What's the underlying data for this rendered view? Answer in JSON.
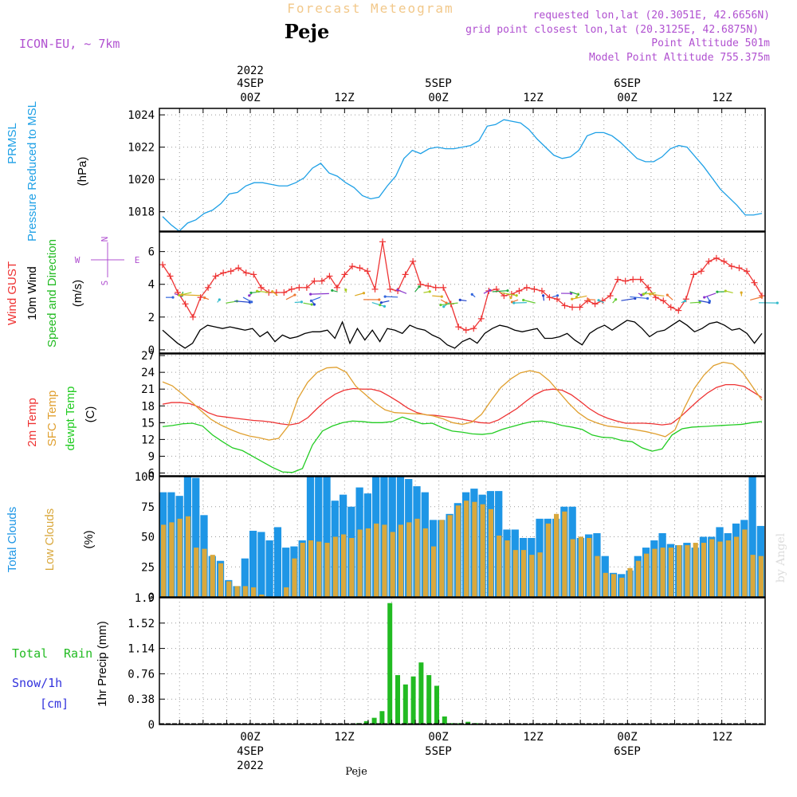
{
  "header": {
    "forecast_title": "Forecast Meteogram",
    "location": "Peje",
    "model": "ICON-EU, ~ 7km",
    "requested": "requested lon,lat (20.3051E, 42.6656N)",
    "grid_point": "grid point closest lon,lat (20.3125E, 42.6875N)",
    "point_alt": "Point Altitude 501m",
    "model_alt": "Model Point Altitude 755.375m"
  },
  "time_axis": {
    "top_dates": [
      "2022",
      "4SEP",
      "5SEP",
      "6SEP"
    ],
    "tick_labels": [
      "00Z",
      "12Z",
      "00Z",
      "12Z",
      "00Z",
      "12Z"
    ],
    "bottom_dates": [
      "4SEP",
      "2022",
      "5SEP",
      "6SEP"
    ],
    "footer": "Peje"
  },
  "watermark": "by Angel",
  "colors": {
    "pressure": "#1ea0e6",
    "gust": "#ee3333",
    "wind": "#000000",
    "wind_dir": "#22bb22",
    "t2m": "#ee3333",
    "sfc": "#e0a030",
    "dew": "#22cc22",
    "total_clouds": "#1e96e6",
    "low_clouds": "#d9a83c",
    "rain": "#22bb22",
    "snow": "#3333dd",
    "purple": "#b050d0"
  },
  "chart_data": [
    {
      "type": "line",
      "ylabels": [
        "PRMSL",
        "Pressure Reduced to MSL",
        "(hPa)"
      ],
      "yticks": [
        1018,
        1020,
        1022,
        1024
      ],
      "ylim": [
        1016.8,
        1024.4
      ],
      "series": [
        {
          "values": [
            1017.7,
            1017.2,
            1016.8,
            1017.3,
            1017.5,
            1017.9,
            1018.1,
            1018.5,
            1019.1,
            1019.2,
            1019.6,
            1019.8,
            1019.8,
            1019.7,
            1019.6,
            1019.6,
            1019.8,
            1020.1,
            1020.7,
            1021.0,
            1020.4,
            1020.2,
            1019.8,
            1019.5,
            1019.0,
            1018.8,
            1018.9,
            1019.6,
            1020.2,
            1021.3,
            1021.8,
            1021.6,
            1021.9,
            1022.0,
            1021.9,
            1021.9,
            1022.0,
            1022.1,
            1022.4,
            1023.3,
            1023.4,
            1023.7,
            1023.6,
            1023.5,
            1023.1,
            1022.5,
            1022.0,
            1021.5,
            1021.3,
            1021.4,
            1021.8,
            1022.7,
            1022.9,
            1022.9,
            1022.7,
            1022.3,
            1021.8,
            1021.3,
            1021.1,
            1021.1,
            1021.4,
            1021.9,
            1022.1,
            1022.0,
            1021.4,
            1020.8,
            1020.1,
            1019.4,
            1018.9,
            1018.4,
            1017.8,
            1017.8,
            1017.9
          ]
        }
      ]
    },
    {
      "type": "line",
      "ylabels": [
        "Wind GUST",
        "10m Wind",
        "Speed and Direction",
        "(m/s)"
      ],
      "compass": [
        "N",
        "W",
        "E",
        "S"
      ],
      "yticks": [
        0,
        2,
        4,
        6
      ],
      "ylim": [
        -0.2,
        7.2
      ],
      "series": [
        {
          "name": "Wind GUST",
          "values": [
            5.2,
            4.5,
            3.5,
            2.8,
            2.0,
            3.2,
            3.8,
            4.5,
            4.7,
            4.8,
            5.0,
            4.7,
            4.6,
            3.8,
            3.5,
            3.5,
            3.5,
            3.7,
            3.8,
            3.8,
            4.2,
            4.2,
            4.5,
            3.8,
            4.6,
            5.1,
            5.0,
            4.8,
            3.7,
            6.6,
            3.7,
            3.6,
            4.6,
            5.4,
            4.0,
            3.9,
            3.8,
            3.8,
            2.8,
            1.4,
            1.2,
            1.3,
            1.9,
            3.6,
            3.7,
            3.3,
            3.4,
            3.6,
            3.8,
            3.7,
            3.6,
            3.2,
            3.1,
            2.7,
            2.6,
            2.6,
            3.0,
            2.8,
            3.0,
            3.3,
            4.3,
            4.2,
            4.3,
            4.3,
            3.8,
            3.2,
            3.0,
            2.6,
            2.4,
            3.1,
            4.6,
            4.8,
            5.4,
            5.6,
            5.4,
            5.1,
            5.0,
            4.8,
            4.1,
            3.3
          ]
        },
        {
          "name": "10m Wind",
          "values": [
            1.2,
            0.8,
            0.4,
            0.1,
            0.4,
            1.2,
            1.5,
            1.4,
            1.3,
            1.4,
            1.3,
            1.2,
            1.3,
            0.8,
            1.1,
            0.5,
            0.9,
            0.7,
            0.8,
            1.0,
            1.1,
            1.1,
            1.2,
            0.7,
            1.7,
            0.4,
            1.3,
            0.6,
            1.2,
            0.5,
            1.3,
            1.2,
            1.0,
            1.5,
            1.3,
            1.2,
            0.9,
            0.7,
            0.3,
            0.1,
            0.5,
            0.7,
            0.4,
            1.0,
            1.3,
            1.5,
            1.4,
            1.2,
            1.1,
            1.2,
            1.3,
            0.7,
            0.7,
            0.8,
            1.0,
            0.6,
            0.3,
            1.0,
            1.3,
            1.5,
            1.2,
            1.5,
            1.8,
            1.7,
            1.3,
            0.8,
            1.1,
            1.2,
            1.5,
            1.8,
            1.5,
            1.1,
            1.3,
            1.6,
            1.7,
            1.5,
            1.2,
            1.3,
            1.0,
            0.4,
            1.0
          ]
        }
      ]
    },
    {
      "type": "line",
      "ylabels": [
        "2m Temp",
        "SFC Temp",
        "dewpt Temp",
        "(C)"
      ],
      "yticks": [
        6,
        9,
        12,
        15,
        18,
        21,
        24,
        27
      ],
      "ylim": [
        5.5,
        27.3
      ],
      "series": [
        {
          "name": "2m Temp",
          "values": [
            18.3,
            18.6,
            18.6,
            18.4,
            17.8,
            16.8,
            16.2,
            16.0,
            15.8,
            15.6,
            15.4,
            15.3,
            15.1,
            14.8,
            14.6,
            14.9,
            15.9,
            17.5,
            19.0,
            20.1,
            20.8,
            21.1,
            21.0,
            21.0,
            20.6,
            19.7,
            18.7,
            17.6,
            16.8,
            16.4,
            16.3,
            16.1,
            15.9,
            15.6,
            15.3,
            15.0,
            14.9,
            15.5,
            16.5,
            17.5,
            18.8,
            20.0,
            20.8,
            21.0,
            20.8,
            20.0,
            18.8,
            17.5,
            16.5,
            15.8,
            15.3,
            14.9,
            14.9,
            14.9,
            14.8,
            14.6,
            14.8,
            16.0,
            17.5,
            19.0,
            20.3,
            21.3,
            21.8,
            21.8,
            21.5,
            20.5,
            19.5
          ]
        },
        {
          "name": "SFC Temp",
          "values": [
            22.3,
            21.6,
            20.2,
            18.7,
            17.1,
            15.6,
            14.6,
            13.8,
            13.1,
            12.6,
            12.3,
            11.9,
            12.2,
            14.4,
            19.3,
            22.2,
            24.0,
            24.8,
            24.9,
            24.0,
            21.5,
            20.0,
            18.5,
            17.3,
            16.8,
            16.7,
            16.6,
            16.5,
            16.2,
            15.7,
            15.0,
            14.7,
            15.1,
            16.5,
            19.0,
            21.3,
            22.8,
            23.9,
            24.3,
            23.9,
            22.5,
            20.5,
            18.5,
            16.8,
            15.6,
            14.9,
            14.4,
            14.2,
            14.0,
            13.7,
            13.4,
            13.0,
            12.5,
            13.7,
            17.7,
            21.1,
            23.5,
            25.2,
            25.8,
            25.5,
            24.0,
            21.5,
            19.0
          ]
        },
        {
          "name": "dewpt Temp",
          "values": [
            14.3,
            14.5,
            14.8,
            14.9,
            14.4,
            12.8,
            11.6,
            10.5,
            10.0,
            9.0,
            8.0,
            7.0,
            6.2,
            6.1,
            6.8,
            11.0,
            13.5,
            14.4,
            15.0,
            15.3,
            15.2,
            15.0,
            15.0,
            15.2,
            16.0,
            15.4,
            14.8,
            14.9,
            14.1,
            13.5,
            13.3,
            13.0,
            12.9,
            13.1,
            13.8,
            14.3,
            14.8,
            15.2,
            15.3,
            15.0,
            14.5,
            14.2,
            13.8,
            12.8,
            12.4,
            12.3,
            11.8,
            11.6,
            10.5,
            9.9,
            10.3,
            12.8,
            13.9,
            14.2,
            14.3,
            14.4,
            14.5,
            14.6,
            14.7,
            15.0,
            15.2
          ]
        }
      ]
    },
    {
      "type": "bar",
      "ylabels": [
        "Total Clouds",
        "Low Clouds",
        "(%)"
      ],
      "yticks": [
        0,
        25,
        50,
        75,
        100
      ],
      "ylim": [
        0,
        100
      ],
      "series": [
        {
          "name": "Total Clouds",
          "values": [
            87,
            87,
            84,
            100,
            99,
            68,
            34,
            30,
            14,
            9,
            32,
            55,
            54,
            47,
            58,
            41,
            42,
            47,
            100,
            100,
            100,
            80,
            85,
            75,
            91,
            86,
            100,
            100,
            100,
            100,
            98,
            92,
            87,
            64,
            64,
            69,
            78,
            87,
            90,
            85,
            88,
            88,
            56,
            56,
            49,
            49,
            65,
            65,
            65,
            75,
            75,
            49,
            52,
            53,
            34,
            20,
            19,
            22,
            34,
            41,
            47,
            53,
            44,
            43,
            45,
            41,
            50,
            50,
            58,
            53,
            61,
            64,
            100,
            59
          ]
        },
        {
          "name": "Low Clouds",
          "values": [
            60,
            62,
            65,
            67,
            41,
            40,
            35,
            28,
            13,
            9,
            9,
            8,
            2,
            0,
            0,
            8,
            32,
            45,
            47,
            46,
            45,
            50,
            52,
            49,
            56,
            57,
            61,
            60,
            54,
            60,
            62,
            65,
            57,
            42,
            64,
            68,
            76,
            80,
            79,
            77,
            73,
            51,
            47,
            39,
            39,
            35,
            37,
            61,
            69,
            71,
            48,
            50,
            49,
            34,
            20,
            19,
            16,
            24,
            30,
            36,
            40,
            41,
            41,
            43,
            43,
            45,
            45,
            48,
            46,
            47,
            50,
            56,
            35,
            34
          ]
        }
      ]
    },
    {
      "type": "bar",
      "ylabels": [
        "Total",
        "Rain",
        "Snow/1h",
        "[cm]",
        "1hr Precip (mm)"
      ],
      "yticks": [
        0,
        0.38,
        0.76,
        1.14,
        1.52,
        1.9
      ],
      "ytick_labels": [
        "0",
        "0.38",
        "0.76",
        "1.14",
        "1.52",
        "1.9"
      ],
      "ylim": [
        0,
        1.9
      ],
      "series": [
        {
          "name": "Total Rain",
          "values": [
            0.02,
            0.05,
            0.1,
            0.2,
            1.82,
            0.74,
            0.6,
            0.72,
            0.93,
            0.74,
            0.58,
            0.12,
            0.02,
            0.02,
            0.04,
            0.02
          ]
        }
      ]
    }
  ]
}
